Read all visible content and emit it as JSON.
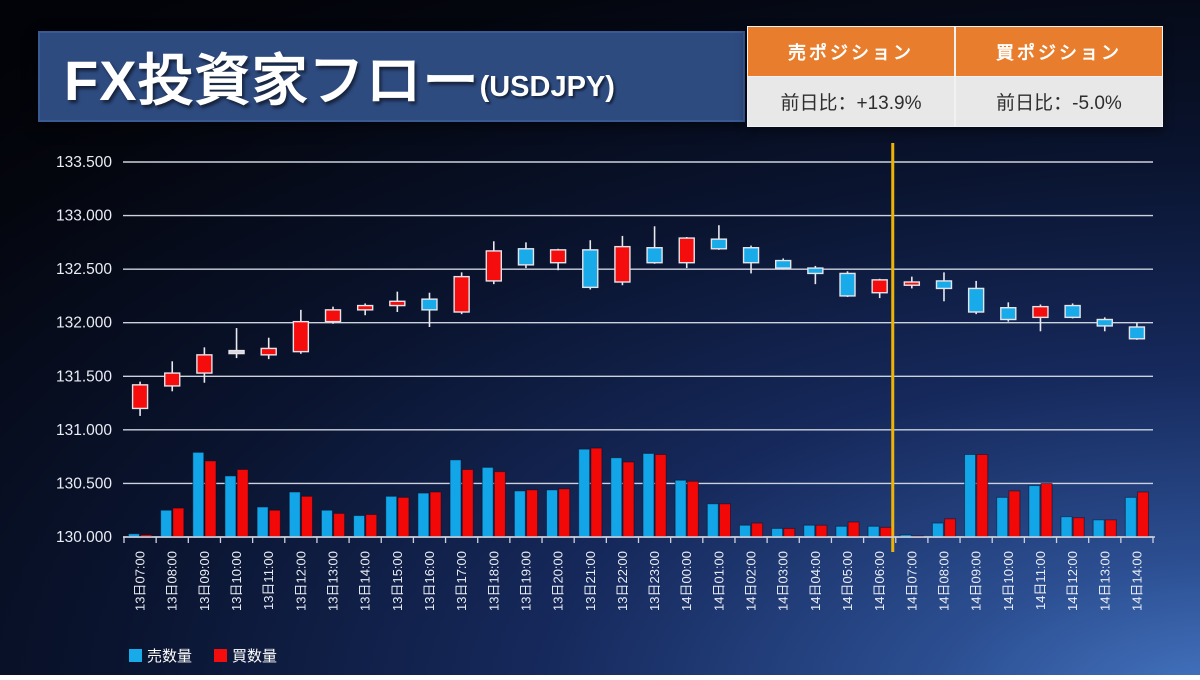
{
  "header": {
    "title": "FX投資家フロー",
    "title_suffix": "(USDJPY)"
  },
  "positions_table": {
    "columns": [
      {
        "header": "売ポジション",
        "value": "前日比：+13.9%"
      },
      {
        "header": "買ポジション",
        "value": "前日比：-5.0%"
      }
    ],
    "header_bg": "#e87e2d",
    "body_bg": "#e8e8e8"
  },
  "chart_data": {
    "type": "candlestick+bar",
    "title": "FX投資家フロー(USDJPY)",
    "y_axis": {
      "min": 130.0,
      "max": 133.5,
      "step": 0.5,
      "tick_labels": [
        "133.500",
        "133.000",
        "132.500",
        "132.000",
        "131.500",
        "131.000",
        "130.500",
        "130.000"
      ]
    },
    "x_labels": [
      "13日07:00",
      "13日08:00",
      "13日09:00",
      "13日10:00",
      "13日11:00",
      "13日12:00",
      "13日13:00",
      "13日14:00",
      "13日15:00",
      "13日16:00",
      "13日17:00",
      "13日18:00",
      "13日19:00",
      "13日20:00",
      "13日21:00",
      "13日22:00",
      "13日23:00",
      "14日00:00",
      "14日01:00",
      "14日02:00",
      "14日03:00",
      "14日04:00",
      "14日05:00",
      "14日06:00",
      "14日07:00",
      "14日08:00",
      "14日09:00",
      "14日10:00",
      "14日11:00",
      "14日12:00",
      "14日13:00",
      "14日14:00"
    ],
    "candles": [
      {
        "t": "13日07:00",
        "dir": "up",
        "o": 131.2,
        "h": 131.45,
        "l": 131.13,
        "c": 131.42
      },
      {
        "t": "13日08:00",
        "dir": "up",
        "o": 131.41,
        "h": 131.64,
        "l": 131.36,
        "c": 131.53
      },
      {
        "t": "13日09:00",
        "dir": "up",
        "o": 131.53,
        "h": 131.77,
        "l": 131.44,
        "c": 131.7
      },
      {
        "t": "13日10:00",
        "dir": "neutral",
        "o": 131.73,
        "h": 131.95,
        "l": 131.67,
        "c": 131.74
      },
      {
        "t": "13日11:00",
        "dir": "up",
        "o": 131.7,
        "h": 131.86,
        "l": 131.66,
        "c": 131.76
      },
      {
        "t": "13日12:00",
        "dir": "up",
        "o": 131.73,
        "h": 132.12,
        "l": 131.71,
        "c": 132.01
      },
      {
        "t": "13日13:00",
        "dir": "up",
        "o": 132.01,
        "h": 132.15,
        "l": 131.99,
        "c": 132.12
      },
      {
        "t": "13日14:00",
        "dir": "up",
        "o": 132.12,
        "h": 132.18,
        "l": 132.07,
        "c": 132.16
      },
      {
        "t": "13日15:00",
        "dir": "up",
        "o": 132.16,
        "h": 132.29,
        "l": 132.1,
        "c": 132.2
      },
      {
        "t": "13日16:00",
        "dir": "down",
        "o": 132.22,
        "h": 132.28,
        "l": 131.96,
        "c": 132.12
      },
      {
        "t": "13日17:00",
        "dir": "up",
        "o": 132.1,
        "h": 132.47,
        "l": 132.08,
        "c": 132.43
      },
      {
        "t": "13日18:00",
        "dir": "up",
        "o": 132.39,
        "h": 132.76,
        "l": 132.36,
        "c": 132.67
      },
      {
        "t": "13日19:00",
        "dir": "down",
        "o": 132.69,
        "h": 132.75,
        "l": 132.51,
        "c": 132.54
      },
      {
        "t": "13日20:00",
        "dir": "up",
        "o": 132.56,
        "h": 132.69,
        "l": 132.49,
        "c": 132.68
      },
      {
        "t": "13日21:00",
        "dir": "down",
        "o": 132.68,
        "h": 132.77,
        "l": 132.31,
        "c": 132.33
      },
      {
        "t": "13日22:00",
        "dir": "up",
        "o": 132.38,
        "h": 132.81,
        "l": 132.35,
        "c": 132.71
      },
      {
        "t": "13日23:00",
        "dir": "down",
        "o": 132.7,
        "h": 132.9,
        "l": 132.55,
        "c": 132.56
      },
      {
        "t": "14日00:00",
        "dir": "up",
        "o": 132.56,
        "h": 132.8,
        "l": 132.51,
        "c": 132.79
      },
      {
        "t": "14日01:00",
        "dir": "down",
        "o": 132.78,
        "h": 132.91,
        "l": 132.68,
        "c": 132.69
      },
      {
        "t": "14日02:00",
        "dir": "down",
        "o": 132.7,
        "h": 132.72,
        "l": 132.46,
        "c": 132.56
      },
      {
        "t": "14日03:00",
        "dir": "down",
        "o": 132.58,
        "h": 132.6,
        "l": 132.5,
        "c": 132.51
      },
      {
        "t": "14日04:00",
        "dir": "down",
        "o": 132.51,
        "h": 132.53,
        "l": 132.36,
        "c": 132.46
      },
      {
        "t": "14日05:00",
        "dir": "down",
        "o": 132.46,
        "h": 132.48,
        "l": 132.24,
        "c": 132.25
      },
      {
        "t": "14日06:00",
        "dir": "up",
        "o": 132.28,
        "h": 132.41,
        "l": 132.23,
        "c": 132.4
      },
      {
        "t": "14日07:00",
        "dir": "up",
        "o": 132.35,
        "h": 132.43,
        "l": 132.32,
        "c": 132.38
      },
      {
        "t": "14日08:00",
        "dir": "down",
        "o": 132.39,
        "h": 132.47,
        "l": 132.2,
        "c": 132.32
      },
      {
        "t": "14日09:00",
        "dir": "down",
        "o": 132.32,
        "h": 132.39,
        "l": 132.08,
        "c": 132.1
      },
      {
        "t": "14日10:00",
        "dir": "down",
        "o": 132.14,
        "h": 132.19,
        "l": 132.01,
        "c": 132.03
      },
      {
        "t": "14日11:00",
        "dir": "up",
        "o": 132.05,
        "h": 132.17,
        "l": 131.92,
        "c": 132.15
      },
      {
        "t": "14日12:00",
        "dir": "down",
        "o": 132.16,
        "h": 132.18,
        "l": 132.04,
        "c": 132.05
      },
      {
        "t": "14日13:00",
        "dir": "down",
        "o": 132.03,
        "h": 132.05,
        "l": 131.92,
        "c": 131.97
      },
      {
        "t": "14日14:00",
        "dir": "down",
        "o": 131.96,
        "h": 132.0,
        "l": 131.84,
        "c": 131.85
      }
    ],
    "volumes_on_price_axis": {
      "note": "bar tops plotted on the price axis, base 130.000",
      "sell": [
        130.03,
        130.25,
        130.79,
        130.57,
        130.28,
        130.42,
        130.25,
        130.2,
        130.38,
        130.41,
        130.72,
        130.65,
        130.43,
        130.44,
        130.82,
        130.74,
        130.78,
        130.53,
        130.31,
        130.11,
        130.08,
        130.11,
        130.1,
        130.1,
        130.02,
        130.13,
        130.77,
        130.37,
        130.48,
        130.19,
        130.16,
        130.37
      ],
      "buy": [
        130.02,
        130.27,
        130.71,
        130.63,
        130.25,
        130.38,
        130.22,
        130.21,
        130.37,
        130.42,
        130.63,
        130.61,
        130.44,
        130.45,
        130.83,
        130.7,
        130.77,
        130.52,
        130.31,
        130.13,
        130.08,
        130.11,
        130.14,
        130.09,
        130.01,
        130.17,
        130.77,
        130.43,
        130.5,
        130.18,
        130.16,
        130.42
      ]
    },
    "marker_line": {
      "between": [
        "14日06:00",
        "14日07:00"
      ],
      "color": "#efb306"
    },
    "legend": [
      {
        "label": "売数量",
        "color": "#18aae9"
      },
      {
        "label": "買数量",
        "color": "#f50d0d"
      }
    ],
    "colors": {
      "up_candle": "#f50d0d",
      "down_candle": "#18aae9",
      "neutral_candle": "#d9d9d9",
      "candle_outline": "#e4e4ea",
      "grid": "#ccd2de",
      "axis_text": "#eaedf4",
      "sell_bar": "#12a6e8",
      "buy_bar": "#f30808",
      "marker": "#efb306"
    },
    "grid": true,
    "legend_position": "bottom-left"
  }
}
